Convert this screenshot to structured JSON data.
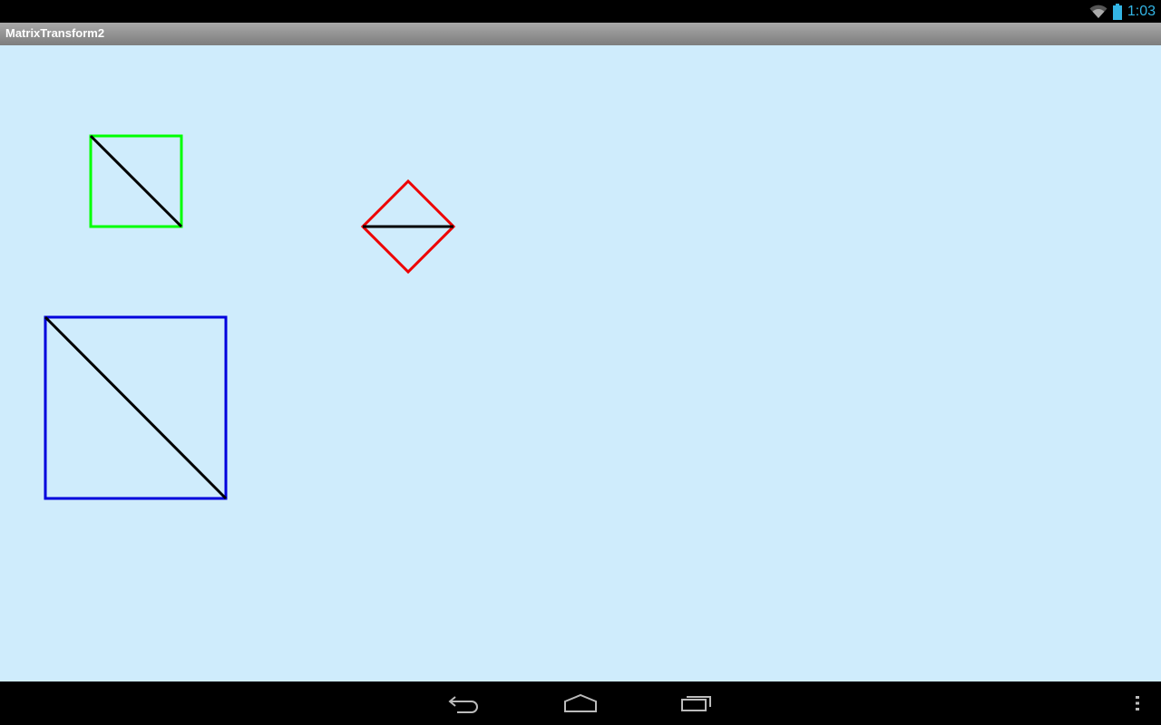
{
  "status_bar": {
    "time": "1:03",
    "icons": [
      "wifi-icon",
      "battery-icon"
    ],
    "accent_color": "#33b5e5"
  },
  "app": {
    "title": "MatrixTransform2"
  },
  "canvas": {
    "background_color": "#cfecfc",
    "shapes": [
      {
        "name": "green-square",
        "stroke": "#00ff00",
        "diagonal_stroke": "#000000"
      },
      {
        "name": "red-diamond",
        "stroke": "#ee0000",
        "diagonal_stroke": "#000000"
      },
      {
        "name": "blue-square",
        "stroke": "#0000dd",
        "diagonal_stroke": "#000000"
      }
    ]
  },
  "nav_bar": {
    "buttons": [
      "back-icon",
      "home-icon",
      "recent-apps-icon",
      "overflow-menu-icon"
    ]
  }
}
